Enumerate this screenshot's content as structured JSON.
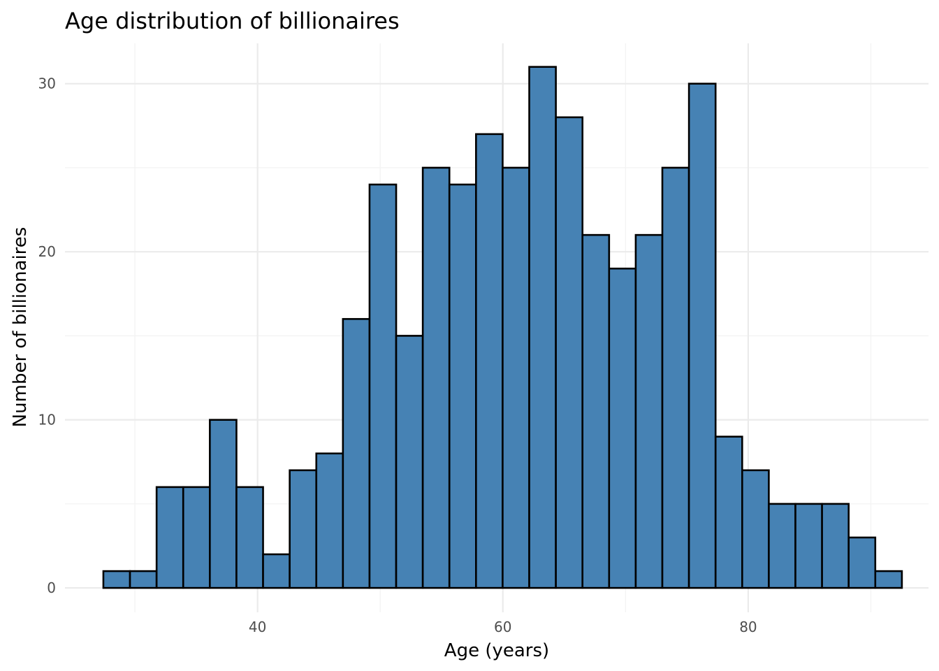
{
  "chart_data": {
    "type": "bar",
    "title": "Age distribution of billionaires",
    "xlabel": "Age (years)",
    "ylabel": "Number of billionaires",
    "bar_color": "#4682B4",
    "edge_color": "#000000",
    "grid": true,
    "xlim": [
      24.3,
      94.7
    ],
    "ylim": [
      -1.45,
      32.4
    ],
    "x_ticks": [
      40,
      60,
      80
    ],
    "y_ticks": [
      0,
      10,
      20,
      30
    ],
    "x_tick_labels": [
      "40",
      "60",
      "80"
    ],
    "y_tick_labels": [
      "0",
      "10",
      "20",
      "30"
    ],
    "bins": [
      {
        "start": 27.43,
        "end": 29.6,
        "count": 1
      },
      {
        "start": 29.6,
        "end": 31.77,
        "count": 1
      },
      {
        "start": 31.77,
        "end": 33.94,
        "count": 6
      },
      {
        "start": 33.94,
        "end": 36.11,
        "count": 6
      },
      {
        "start": 36.11,
        "end": 38.28,
        "count": 10
      },
      {
        "start": 38.28,
        "end": 40.45,
        "count": 6
      },
      {
        "start": 40.45,
        "end": 42.62,
        "count": 2
      },
      {
        "start": 42.62,
        "end": 44.79,
        "count": 7
      },
      {
        "start": 44.79,
        "end": 46.96,
        "count": 8
      },
      {
        "start": 46.96,
        "end": 49.13,
        "count": 16
      },
      {
        "start": 49.13,
        "end": 51.3,
        "count": 24
      },
      {
        "start": 51.3,
        "end": 53.47,
        "count": 15
      },
      {
        "start": 53.47,
        "end": 55.64,
        "count": 25
      },
      {
        "start": 55.64,
        "end": 57.81,
        "count": 24
      },
      {
        "start": 57.81,
        "end": 59.98,
        "count": 27
      },
      {
        "start": 59.98,
        "end": 62.15,
        "count": 25
      },
      {
        "start": 62.15,
        "end": 64.32,
        "count": 31
      },
      {
        "start": 64.32,
        "end": 66.49,
        "count": 28
      },
      {
        "start": 66.49,
        "end": 68.66,
        "count": 21
      },
      {
        "start": 68.66,
        "end": 70.83,
        "count": 19
      },
      {
        "start": 70.83,
        "end": 73.0,
        "count": 21
      },
      {
        "start": 73.0,
        "end": 75.17,
        "count": 25
      },
      {
        "start": 75.17,
        "end": 77.34,
        "count": 30
      },
      {
        "start": 77.34,
        "end": 79.51,
        "count": 9
      },
      {
        "start": 79.51,
        "end": 81.68,
        "count": 7
      },
      {
        "start": 81.68,
        "end": 83.85,
        "count": 5
      },
      {
        "start": 83.85,
        "end": 86.02,
        "count": 5
      },
      {
        "start": 86.02,
        "end": 88.19,
        "count": 5
      },
      {
        "start": 88.19,
        "end": 90.36,
        "count": 3
      },
      {
        "start": 90.36,
        "end": 92.53,
        "count": 1
      }
    ]
  }
}
